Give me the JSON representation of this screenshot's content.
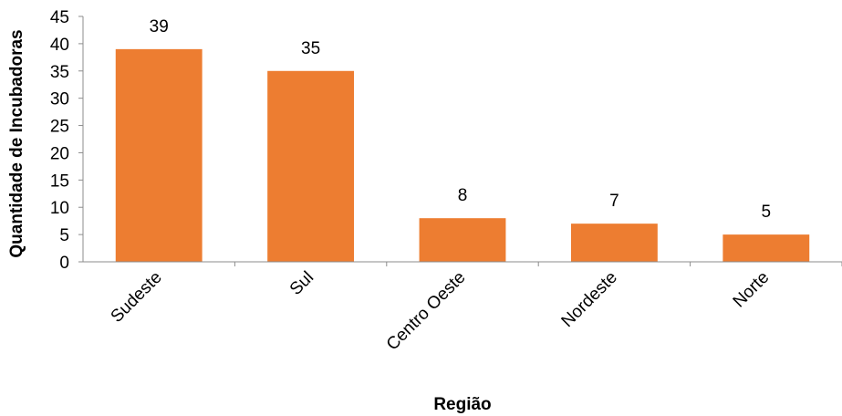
{
  "chart_data": {
    "type": "bar",
    "categories": [
      "Sudeste",
      "Sul",
      "Centro Oeste",
      "Nordeste",
      "Norte"
    ],
    "values": [
      39,
      35,
      8,
      7,
      5
    ],
    "title": "",
    "xlabel": "Região",
    "ylabel": "Quantidade de Incubadoras",
    "ylim": [
      0,
      45
    ],
    "yticks": [
      0,
      5,
      10,
      15,
      20,
      25,
      30,
      35,
      40,
      45
    ],
    "data_labels": true,
    "grid": false,
    "legend": "none",
    "bar_color": "#ED7D31"
  }
}
